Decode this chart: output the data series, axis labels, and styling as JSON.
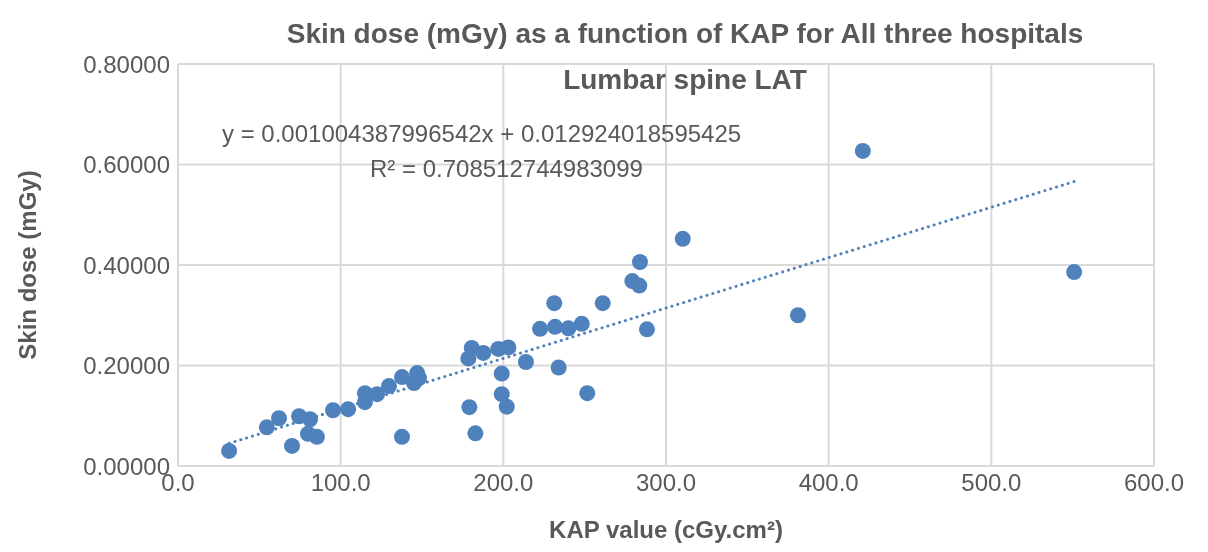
{
  "chart_data": {
    "type": "scatter",
    "title": "Skin dose (mGy) as a function of KAP for All three hospitals",
    "subtitle": "Lumbar spine LAT",
    "xlabel": "KAP value (cGy.cm²)",
    "ylabel": "Skin dose (mGy)",
    "annotations": [
      "y = 0.001004387996542x + 0.012924018595425",
      "R² = 0.708512744983099"
    ],
    "xlim": [
      0,
      600
    ],
    "xticks": [
      {
        "value": 0,
        "label": "0.0"
      },
      {
        "value": 100,
        "label": "100.0"
      },
      {
        "value": 200,
        "label": "200.0"
      },
      {
        "value": 300,
        "label": "300.0"
      },
      {
        "value": 400,
        "label": "400.0"
      },
      {
        "value": 500,
        "label": "500.0"
      },
      {
        "value": 600,
        "label": "600.0"
      }
    ],
    "ylim": [
      0,
      0.8
    ],
    "yticks": [
      {
        "value": 0,
        "label": "0.00000"
      },
      {
        "value": 0.2,
        "label": "0.20000"
      },
      {
        "value": 0.4,
        "label": "0.40000"
      },
      {
        "value": 0.6,
        "label": "0.60000"
      },
      {
        "value": 0.8,
        "label": "0.80000"
      }
    ],
    "grid": true,
    "marker": "circle",
    "series": [
      {
        "type": "scatter",
        "color": "#4f81bd",
        "x": [
          31.4,
          54.6,
          62.1,
          70.1,
          74.4,
          81.2,
          79.9,
          85.4,
          95.3,
          104.6,
          114.9,
          114.9,
          122.4,
          129.7,
          137.7,
          137.7,
          147,
          145.1,
          148.2,
          180.6,
          178.5,
          187.7,
          196.9,
          203.1,
          199,
          199,
          202.1,
          179.1,
          182.8,
          213.9,
          222.6,
          231.3,
          231.8,
          240,
          248.2,
          234,
          251.6,
          261.1,
          279.3,
          283.6,
          284,
          288.3,
          310.3,
          381.1,
          421,
          550.9
        ],
        "values": [
          0.03,
          0.077,
          0.095,
          0.04,
          0.099,
          0.093,
          0.064,
          0.058,
          0.111,
          0.113,
          0.127,
          0.145,
          0.143,
          0.159,
          0.177,
          0.058,
          0.185,
          0.165,
          0.175,
          0.235,
          0.214,
          0.225,
          0.233,
          0.236,
          0.184,
          0.143,
          0.118,
          0.117,
          0.065,
          0.207,
          0.273,
          0.324,
          0.277,
          0.274,
          0.283,
          0.196,
          0.145,
          0.324,
          0.368,
          0.359,
          0.406,
          0.272,
          0.452,
          0.3,
          0.627,
          0.386
        ]
      },
      {
        "type": "line",
        "color": "#4f81bd",
        "line_style": "dotted",
        "marker": "none",
        "x": [
          31.4,
          550.9
        ],
        "values": [
          0.045,
          0.566
        ]
      }
    ]
  }
}
